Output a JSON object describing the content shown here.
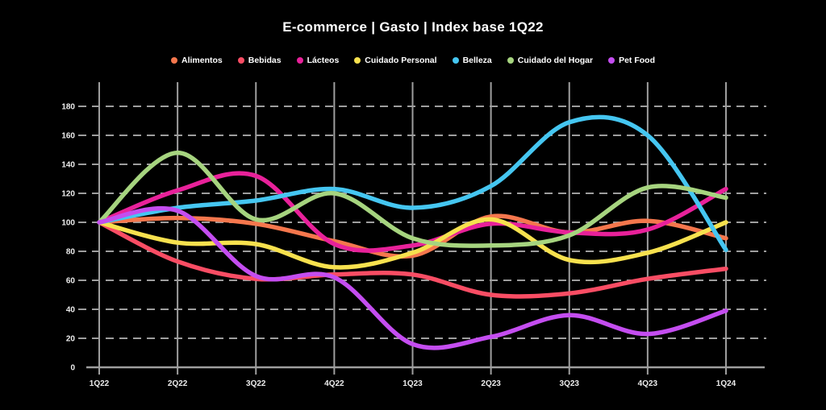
{
  "title": "E-commerce | Gasto | Index base 1Q22",
  "chart_data": {
    "type": "line",
    "title": "E-commerce | Gasto | Index base 1Q22",
    "categories": [
      "1Q22",
      "2Q22",
      "3Q22",
      "4Q22",
      "1Q23",
      "2Q23",
      "3Q23",
      "4Q23",
      "1Q24"
    ],
    "series": [
      {
        "name": "Alimentos",
        "color": "#f5774d",
        "values": [
          100,
          103,
          99,
          87,
          77,
          104,
          93,
          101,
          89
        ]
      },
      {
        "name": "Bebidas",
        "color": "#f94d64",
        "values": [
          100,
          73,
          61,
          64,
          64,
          50,
          51,
          61,
          68
        ]
      },
      {
        "name": "Lácteos",
        "color": "#e8219a",
        "values": [
          100,
          122,
          132,
          85,
          84,
          99,
          93,
          95,
          123
        ]
      },
      {
        "name": "Cuidado Personal",
        "color": "#f7e14e",
        "values": [
          100,
          86,
          85,
          69,
          79,
          102,
          74,
          79,
          100
        ]
      },
      {
        "name": "Belleza",
        "color": "#45c6f1",
        "values": [
          100,
          110,
          115,
          123,
          110,
          125,
          169,
          160,
          81
        ]
      },
      {
        "name": "Cuidado del Hogar",
        "color": "#a6d47f",
        "values": [
          100,
          148,
          102,
          120,
          89,
          84,
          91,
          124,
          117
        ]
      },
      {
        "name": "Pet Food",
        "color": "#c44df0",
        "values": [
          100,
          108,
          63,
          62,
          16,
          21,
          36,
          23,
          39
        ]
      }
    ],
    "ylim": [
      0,
      180
    ],
    "ytick_step": 20,
    "xlabel": "",
    "ylabel": "",
    "grid": {
      "horizontal": "dashed",
      "vertical": "solid"
    },
    "legend_position": "top"
  },
  "colors": {
    "background": "#000000",
    "grid": "#9e9e9e",
    "axis_text": "#ededed",
    "title_text": "#ffffff"
  }
}
